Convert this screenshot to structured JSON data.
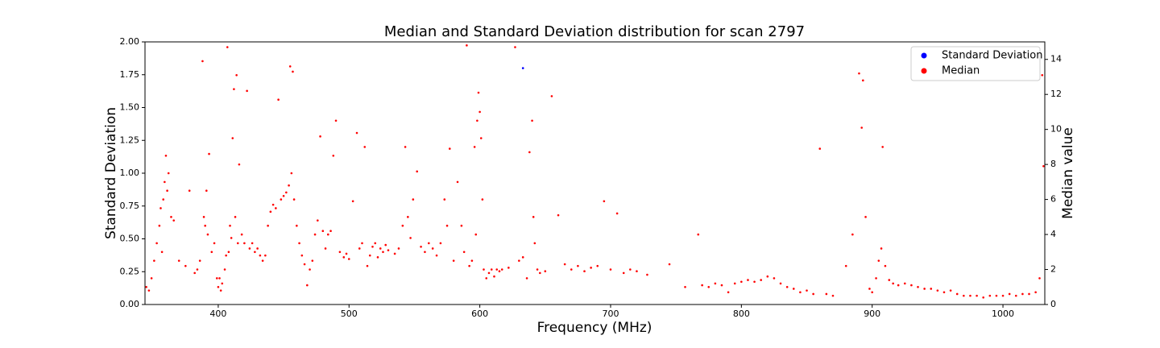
{
  "chart_data": {
    "type": "scatter",
    "title": "Median and Standard Deviation distribution for scan 2797",
    "x_label": "Frequency (MHz)",
    "y_label": "Standard Deviation",
    "y2_label": "Median value",
    "xlim": [
      344,
      1032
    ],
    "xticks": [
      400,
      500,
      600,
      700,
      800,
      900,
      1000
    ],
    "ylim": [
      0,
      2
    ],
    "yticks": [
      {
        "value": 0,
        "label": "0.00"
      },
      {
        "value": 0.25,
        "label": "0.25"
      },
      {
        "value": 0.5,
        "label": "0.50"
      },
      {
        "value": 0.75,
        "label": "0.75"
      },
      {
        "value": 1,
        "label": "1.00"
      },
      {
        "value": 1.25,
        "label": "1.25"
      },
      {
        "value": 1.5,
        "label": "1.50"
      },
      {
        "value": 1.75,
        "label": "1.75"
      },
      {
        "value": 2,
        "label": "2.00"
      }
    ],
    "y2lim": [
      0,
      15
    ],
    "y2ticks": [
      0,
      2,
      4,
      6,
      8,
      10,
      12,
      14
    ],
    "legend": "upper right",
    "series": [
      {
        "name": "Standard Deviation",
        "color": "#0000ff",
        "x": [
          633
        ],
        "values": [
          1.8
        ]
      },
      {
        "name": "Median",
        "color": "#ff0000",
        "axis": "y2",
        "x": [
          345,
          347,
          349,
          351,
          353,
          355,
          356,
          357,
          358,
          359,
          360,
          361,
          362,
          364,
          366,
          370,
          375,
          378,
          382,
          384,
          386,
          388,
          389,
          390,
          391,
          392,
          393,
          395,
          397,
          399,
          400,
          401,
          402,
          403,
          405,
          406,
          407,
          408,
          409,
          410,
          411,
          412,
          413,
          414,
          415,
          416,
          418,
          420,
          422,
          424,
          426,
          428,
          430,
          432,
          434,
          436,
          438,
          440,
          442,
          444,
          446,
          448,
          450,
          452,
          454,
          455,
          456,
          457,
          458,
          460,
          462,
          464,
          466,
          468,
          470,
          472,
          474,
          476,
          478,
          480,
          482,
          484,
          486,
          488,
          490,
          493,
          496,
          498,
          500,
          503,
          506,
          508,
          510,
          512,
          514,
          516,
          518,
          520,
          522,
          524,
          526,
          528,
          530,
          535,
          538,
          541,
          543,
          545,
          547,
          549,
          552,
          555,
          558,
          561,
          564,
          567,
          570,
          573,
          575,
          577,
          580,
          583,
          586,
          588,
          590,
          592,
          594,
          596,
          597,
          598,
          599,
          600,
          601,
          602,
          603,
          605,
          607,
          609,
          611,
          613,
          615,
          617,
          622,
          627,
          630,
          633,
          636,
          638,
          640,
          641,
          642,
          644,
          646,
          650,
          655,
          660,
          665,
          670,
          675,
          680,
          685,
          690,
          695,
          700,
          705,
          710,
          715,
          720,
          728,
          745,
          757,
          767,
          770,
          775,
          780,
          785,
          790,
          795,
          800,
          805,
          810,
          815,
          820,
          825,
          830,
          835,
          840,
          845,
          850,
          855,
          860,
          865,
          870,
          880,
          885,
          890,
          892,
          893,
          895,
          898,
          900,
          903,
          905,
          907,
          908,
          910,
          913,
          916,
          920,
          925,
          930,
          935,
          940,
          945,
          950,
          955,
          960,
          965,
          970,
          975,
          980,
          985,
          990,
          995,
          1000,
          1005,
          1010,
          1015,
          1020,
          1025,
          1028,
          1030,
          1031
        ],
        "values": [
          1.0,
          0.8,
          1.5,
          2.5,
          3.5,
          4.5,
          5.5,
          3.0,
          6.0,
          7.0,
          8.5,
          6.5,
          7.5,
          5.0,
          4.8,
          2.5,
          2.2,
          6.5,
          1.8,
          2.0,
          2.5,
          13.9,
          5.0,
          4.5,
          6.5,
          4.0,
          8.6,
          3.0,
          3.5,
          1.5,
          1.0,
          1.5,
          0.8,
          1.2,
          2.0,
          2.8,
          14.7,
          3.0,
          4.5,
          3.8,
          9.5,
          12.3,
          5.0,
          13.1,
          3.5,
          8.0,
          4.0,
          3.5,
          12.2,
          3.2,
          3.5,
          3.0,
          3.2,
          2.8,
          2.5,
          2.8,
          4.5,
          5.3,
          5.7,
          5.5,
          11.7,
          6.0,
          6.2,
          6.4,
          6.8,
          13.6,
          7.5,
          13.3,
          6.0,
          4.5,
          3.5,
          2.8,
          2.3,
          1.1,
          2.0,
          2.5,
          4.0,
          4.8,
          9.6,
          4.2,
          3.2,
          4.0,
          4.2,
          8.5,
          10.5,
          3.0,
          2.7,
          2.9,
          2.6,
          5.9,
          9.8,
          3.2,
          3.5,
          9.0,
          2.2,
          2.8,
          3.3,
          3.5,
          2.7,
          3.2,
          3.0,
          3.4,
          3.1,
          2.9,
          3.2,
          4.5,
          9.0,
          5.0,
          3.8,
          6.0,
          7.6,
          3.3,
          3.0,
          3.5,
          3.2,
          2.8,
          3.5,
          6.0,
          4.5,
          8.9,
          2.5,
          7.0,
          4.5,
          3.0,
          14.8,
          2.2,
          2.5,
          9.0,
          4.0,
          10.5,
          12.1,
          11.0,
          9.5,
          6.0,
          2.0,
          1.5,
          1.8,
          2.0,
          1.6,
          2.0,
          1.9,
          2.0,
          2.1,
          14.7,
          2.5,
          2.7,
          1.5,
          8.7,
          10.5,
          5.0,
          3.5,
          2.0,
          1.8,
          1.9,
          11.9,
          5.1,
          2.3,
          2.0,
          2.2,
          1.9,
          2.1,
          2.2,
          5.9,
          2.0,
          5.2,
          1.8,
          2.0,
          1.9,
          1.7,
          2.3,
          1.0,
          4.0,
          1.1,
          1.0,
          1.2,
          1.1,
          0.7,
          1.2,
          1.3,
          1.4,
          1.3,
          1.4,
          1.6,
          1.5,
          1.2,
          1.0,
          0.9,
          0.7,
          0.8,
          0.6,
          8.9,
          0.6,
          0.5,
          2.2,
          4.0,
          13.2,
          10.1,
          12.8,
          5.0,
          0.9,
          0.7,
          1.5,
          2.5,
          3.2,
          9.0,
          2.2,
          1.4,
          1.2,
          1.1,
          1.2,
          1.1,
          1.0,
          0.9,
          0.9,
          0.8,
          0.7,
          0.8,
          0.6,
          0.5,
          0.5,
          0.5,
          0.4,
          0.5,
          0.5,
          0.5,
          0.6,
          0.5,
          0.6,
          0.6,
          0.7,
          1.5,
          13.1,
          7.9
        ]
      }
    ]
  }
}
